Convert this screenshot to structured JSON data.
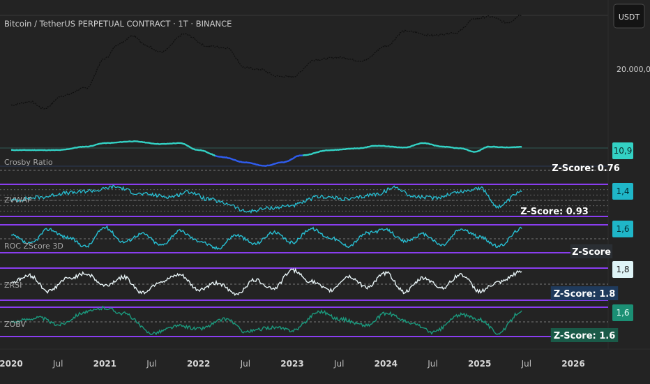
{
  "header": {
    "title": "Bitcoin / TetherUS PERPETUAL CONTRACT · 1T · BINANCE",
    "currency": "USDT"
  },
  "price_scale": {
    "tick_label": "20.000,0"
  },
  "colors": {
    "background": "#232323",
    "price_line": "#0e0e0e",
    "band": "#8a3df0",
    "teal": "#33d1c4",
    "blue": "#2f5df0",
    "cyan": "#27bfd3",
    "white": "#e8f4f6",
    "green": "#1b9a7e"
  },
  "chart_data": [
    {
      "type": "line",
      "name": "price",
      "title": "Bitcoin / TetherUS PERPETUAL CONTRACT · 1T · BINANCE",
      "ylabel": "USDT",
      "scale": "log",
      "x": [
        2020.0,
        2020.2,
        2020.35,
        2020.55,
        2020.8,
        2021.0,
        2021.15,
        2021.3,
        2021.45,
        2021.6,
        2021.85,
        2022.1,
        2022.3,
        2022.5,
        2022.65,
        2022.85,
        2023.0,
        2023.25,
        2023.5,
        2023.75,
        2024.0,
        2024.2,
        2024.5,
        2024.75,
        2024.95,
        2025.1,
        2025.3,
        2025.45
      ],
      "y": [
        7200,
        8000,
        6500,
        9500,
        12000,
        29000,
        45000,
        58000,
        42000,
        35000,
        60000,
        42000,
        40000,
        22000,
        21000,
        17000,
        16800,
        28000,
        30000,
        27000,
        42000,
        66000,
        58000,
        63000,
        95000,
        102000,
        85000,
        108000
      ]
    },
    {
      "type": "line",
      "name": "Crosby Ratio",
      "last_value": "10,9",
      "annotation": "Z-Score: 0.76",
      "x": [
        2020.0,
        2020.5,
        2020.8,
        2021.0,
        2021.3,
        2021.6,
        2021.8,
        2022.0,
        2022.25,
        2022.5,
        2022.7,
        2022.9,
        2023.1,
        2023.4,
        2023.7,
        2023.9,
        2024.2,
        2024.4,
        2024.6,
        2024.8,
        2024.95,
        2025.1,
        2025.3,
        2025.45
      ],
      "y": [
        9,
        9,
        11,
        13,
        14,
        12.5,
        13,
        9,
        5,
        2,
        0,
        2,
        6,
        9,
        10,
        11.5,
        10.5,
        13,
        11,
        10,
        8,
        11,
        10.5,
        10.9
      ]
    },
    {
      "type": "line",
      "name": "ZVWAP",
      "last_value": "1,4",
      "annotation": "Z-Score: 0.93",
      "x": [
        2020.0,
        2020.3,
        2020.6,
        2020.9,
        2021.1,
        2021.4,
        2021.7,
        2021.9,
        2022.1,
        2022.3,
        2022.5,
        2022.8,
        2023.0,
        2023.3,
        2023.6,
        2023.9,
        2024.1,
        2024.3,
        2024.5,
        2024.8,
        2025.0,
        2025.2,
        2025.45
      ],
      "y": [
        0,
        0.5,
        1.2,
        1.6,
        2.2,
        1.0,
        0.6,
        1.4,
        0.2,
        -0.5,
        -1.8,
        -1.2,
        -0.8,
        0.6,
        0.2,
        1.0,
        2.1,
        0.6,
        0.4,
        1.4,
        2.0,
        -1.0,
        1.4
      ]
    },
    {
      "type": "line",
      "name": "ROC ZScore 3D",
      "last_value": "1,6",
      "annotation": "Z-Score",
      "x": [
        2020.0,
        2020.2,
        2020.4,
        2020.6,
        2020.8,
        2021.0,
        2021.2,
        2021.4,
        2021.6,
        2021.8,
        2022.0,
        2022.2,
        2022.4,
        2022.6,
        2022.8,
        2023.0,
        2023.2,
        2023.4,
        2023.6,
        2023.8,
        2024.0,
        2024.2,
        2024.4,
        2024.6,
        2024.8,
        2025.0,
        2025.2,
        2025.45
      ],
      "y": [
        0.5,
        -0.8,
        1.5,
        0.2,
        -1.2,
        1.8,
        -0.5,
        0.8,
        -1.0,
        1.2,
        -0.3,
        -1.5,
        0.6,
        -0.8,
        1.0,
        -0.6,
        1.6,
        0.2,
        -1.1,
        0.9,
        1.4,
        -0.4,
        0.7,
        -1.0,
        1.5,
        0.3,
        -1.2,
        1.6
      ]
    },
    {
      "type": "line",
      "name": "ZRSI",
      "last_value": "1,8",
      "annotation": "Z-Score: 1.8",
      "x": [
        2020.0,
        2020.2,
        2020.4,
        2020.6,
        2020.8,
        2021.0,
        2021.2,
        2021.4,
        2021.6,
        2021.8,
        2022.0,
        2022.2,
        2022.4,
        2022.6,
        2022.8,
        2023.0,
        2023.2,
        2023.4,
        2023.6,
        2023.8,
        2024.0,
        2024.2,
        2024.4,
        2024.6,
        2024.8,
        2025.0,
        2025.2,
        2025.45
      ],
      "y": [
        0.3,
        1.2,
        -1.0,
        0.8,
        1.5,
        -0.2,
        1.0,
        -1.2,
        0.4,
        1.3,
        -0.8,
        0.2,
        -1.4,
        0.6,
        -0.6,
        2.0,
        0.4,
        -0.9,
        1.1,
        -0.4,
        1.6,
        -1.1,
        0.9,
        -0.5,
        1.4,
        -1.0,
        0.2,
        1.8
      ]
    },
    {
      "type": "line",
      "name": "ZOBV",
      "last_value": "1,6",
      "annotation": "Z-Score: 1.6",
      "x": [
        2020.0,
        2020.3,
        2020.5,
        2020.8,
        2021.0,
        2021.2,
        2021.5,
        2021.8,
        2022.0,
        2022.3,
        2022.5,
        2022.8,
        2023.0,
        2023.3,
        2023.5,
        2023.8,
        2024.0,
        2024.3,
        2024.5,
        2024.8,
        2025.0,
        2025.2,
        2025.45
      ],
      "y": [
        0,
        0.6,
        -0.4,
        1.4,
        2.0,
        1.2,
        -1.6,
        -0.6,
        -1.0,
        0.4,
        -1.4,
        -0.8,
        -1.2,
        1.5,
        0.4,
        -0.5,
        1.2,
        -0.3,
        -1.5,
        1.0,
        0.4,
        -1.6,
        1.6
      ]
    }
  ],
  "x_axis": {
    "labels": [
      {
        "text": "2020",
        "x": 2020.0
      },
      {
        "text": "Jul",
        "x": 2020.5
      },
      {
        "text": "2021",
        "x": 2021.0
      },
      {
        "text": "Jul",
        "x": 2021.5
      },
      {
        "text": "2022",
        "x": 2022.0
      },
      {
        "text": "Jul",
        "x": 2022.5
      },
      {
        "text": "2023",
        "x": 2023.0
      },
      {
        "text": "Jul",
        "x": 2023.5
      },
      {
        "text": "2024",
        "x": 2024.0
      },
      {
        "text": "Jul",
        "x": 2024.5
      },
      {
        "text": "2025",
        "x": 2025.0
      },
      {
        "text": "Jul",
        "x": 2025.5
      },
      {
        "text": "2026",
        "x": 2026.0
      }
    ]
  }
}
